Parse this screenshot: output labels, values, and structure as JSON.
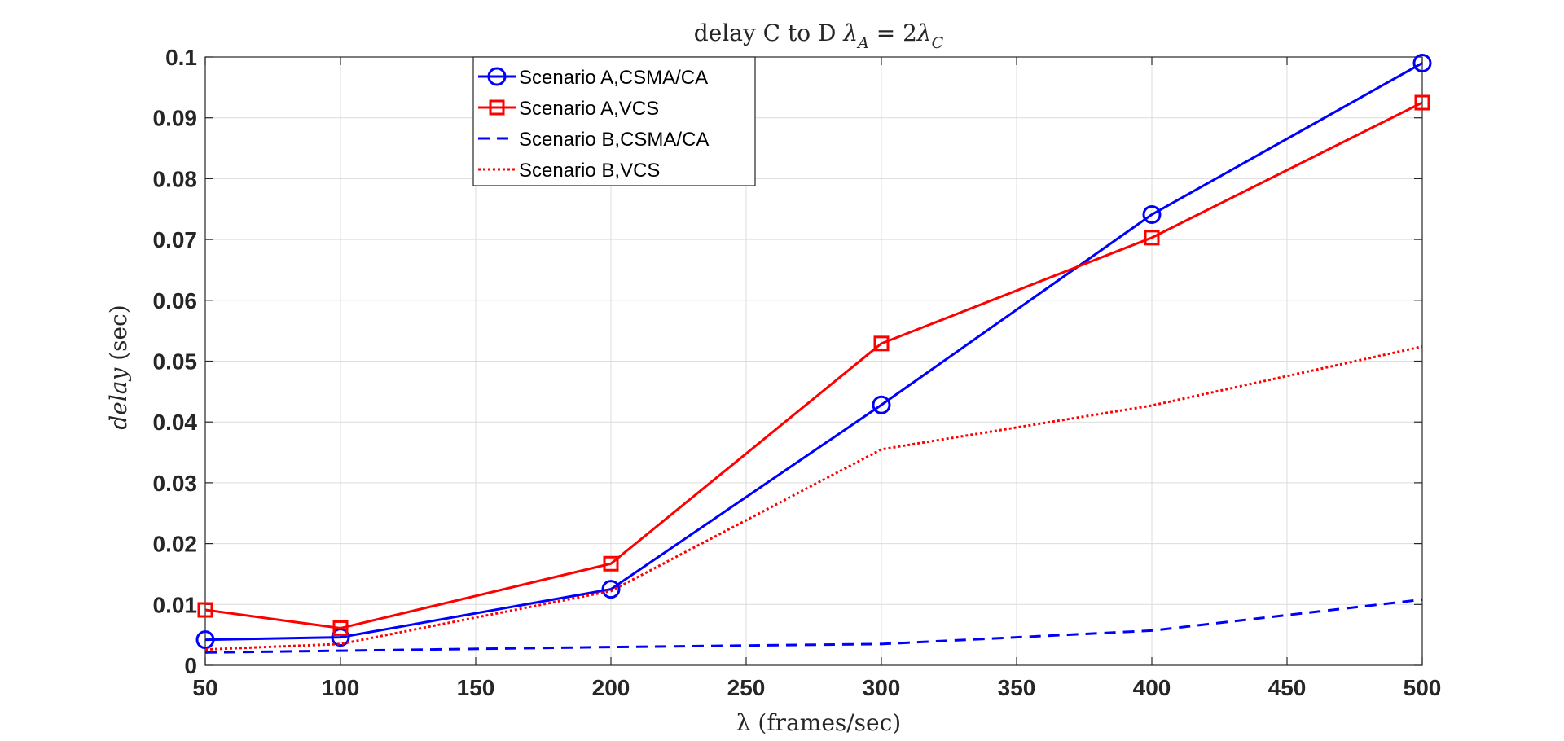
{
  "chart_data": {
    "type": "line",
    "title": "delay C to D λ_A = 2λ_C",
    "title_parts": {
      "prefix": "delay C to D ",
      "lambda": "λ",
      "sub_a": "A",
      "equals_two": " = 2",
      "sub_c": "C"
    },
    "xlabel": "λ (frames/sec)",
    "ylabel": "delay (sec)",
    "ylabel_parts": {
      "var": "delay",
      "unit": " (sec)"
    },
    "xlim": [
      50,
      500
    ],
    "ylim": [
      0,
      0.1
    ],
    "xticks": [
      50,
      100,
      150,
      200,
      250,
      300,
      350,
      400,
      450,
      500
    ],
    "xtick_labels": [
      "50",
      "100",
      "150",
      "200",
      "250",
      "300",
      "350",
      "400",
      "450",
      "500"
    ],
    "yticks": [
      0,
      0.01,
      0.02,
      0.03,
      0.04,
      0.05,
      0.06,
      0.07,
      0.08,
      0.09,
      0.1
    ],
    "ytick_labels": [
      "0",
      "0.01",
      "0.02",
      "0.03",
      "0.04",
      "0.05",
      "0.06",
      "0.07",
      "0.08",
      "0.09",
      "0.1"
    ],
    "grid": true,
    "legend_position": "top-center",
    "x": [
      50,
      100,
      200,
      300,
      400,
      500
    ],
    "series": [
      {
        "name": "Scenario A,CSMA/CA",
        "values": [
          0.0042,
          0.0046,
          0.0125,
          0.0428,
          0.0741,
          0.099
        ],
        "color": "#0000ff",
        "dash": "solid",
        "marker": "circle"
      },
      {
        "name": "Scenario A,VCS",
        "values": [
          0.0091,
          0.0061,
          0.0167,
          0.0529,
          0.0703,
          0.0925
        ],
        "color": "#ff0000",
        "dash": "solid",
        "marker": "square"
      },
      {
        "name": "Scenario B,CSMA/CA",
        "values": [
          0.0021,
          0.0024,
          0.003,
          0.0035,
          0.0057,
          0.0108
        ],
        "color": "#0000ff",
        "dash": "dashed",
        "marker": "none"
      },
      {
        "name": "Scenario B,VCS",
        "values": [
          0.0026,
          0.0035,
          0.0122,
          0.0355,
          0.0427,
          0.0524
        ],
        "color": "#ff0000",
        "dash": "dotted",
        "marker": "none"
      }
    ]
  }
}
